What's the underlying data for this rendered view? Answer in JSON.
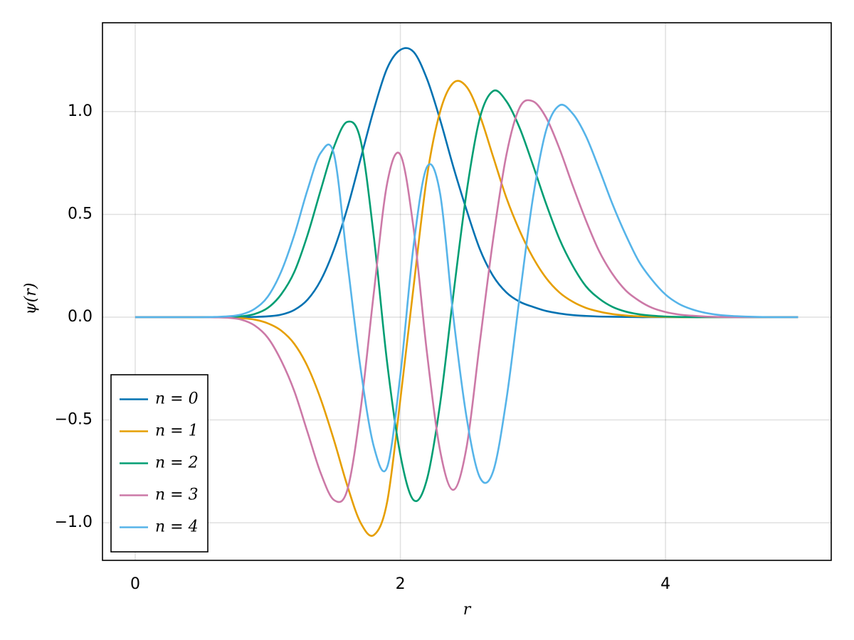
{
  "chart_data": {
    "type": "line",
    "xlabel": "r",
    "ylabel": "ψ(r)",
    "x": [
      0,
      0.1,
      0.2,
      0.3,
      0.4,
      0.5,
      0.6,
      0.7,
      0.8,
      0.9,
      1,
      1.1,
      1.2,
      1.3,
      1.4,
      1.5,
      1.6,
      1.7,
      1.8,
      1.9,
      2,
      2.1,
      2.2,
      2.3,
      2.4,
      2.5,
      2.6,
      2.7,
      2.8,
      2.9,
      3,
      3.1,
      3.2,
      3.3,
      3.4,
      3.5,
      3.6,
      3.7,
      3.8,
      3.9,
      4,
      4.1,
      4.2,
      4.3,
      4.4,
      4.5,
      4.6,
      4.7,
      4.8,
      4.9,
      5
    ],
    "series": [
      {
        "name": "n = 0",
        "color": "#0072b2",
        "values": [
          0,
          0,
          0,
          0,
          0,
          0,
          0,
          0,
          0,
          0.001,
          0.004,
          0.012,
          0.035,
          0.085,
          0.18,
          0.33,
          0.53,
          0.77,
          1.01,
          1.21,
          1.3,
          1.29,
          1.16,
          0.96,
          0.73,
          0.52,
          0.33,
          0.2,
          0.12,
          0.075,
          0.05,
          0.03,
          0.018,
          0.01,
          0.006,
          0.003,
          0.002,
          0.001,
          0,
          0,
          0,
          0,
          0,
          0,
          0,
          0,
          0,
          0,
          0,
          0,
          0
        ]
      },
      {
        "name": "n = 1",
        "color": "#e69f00",
        "values": [
          0,
          0,
          0,
          0,
          0,
          0,
          0,
          -0.002,
          -0.005,
          -0.012,
          -0.03,
          -0.065,
          -0.13,
          -0.24,
          -0.4,
          -0.6,
          -0.82,
          -1.0,
          -1.06,
          -0.9,
          -0.4,
          0.15,
          0.68,
          1.0,
          1.14,
          1.12,
          0.98,
          0.78,
          0.58,
          0.42,
          0.29,
          0.19,
          0.12,
          0.075,
          0.045,
          0.027,
          0.015,
          0.008,
          0.004,
          0.002,
          0.001,
          0,
          0,
          0,
          0,
          0,
          0,
          0,
          0,
          0,
          0
        ]
      },
      {
        "name": "n = 2",
        "color": "#009e73",
        "values": [
          0,
          0,
          0,
          0,
          0,
          0,
          0,
          0.001,
          0.004,
          0.015,
          0.045,
          0.11,
          0.22,
          0.4,
          0.62,
          0.83,
          0.95,
          0.86,
          0.39,
          -0.22,
          -0.67,
          -0.89,
          -0.79,
          -0.42,
          0.11,
          0.61,
          0.97,
          1.1,
          1.05,
          0.92,
          0.74,
          0.55,
          0.38,
          0.25,
          0.15,
          0.09,
          0.05,
          0.027,
          0.014,
          0.007,
          0.003,
          0.001,
          0,
          0,
          0,
          0,
          0,
          0,
          0,
          0,
          0
        ]
      },
      {
        "name": "n = 3",
        "color": "#cc79a7",
        "values": [
          0,
          0,
          0,
          0,
          0,
          0,
          -0.001,
          -0.003,
          -0.012,
          -0.04,
          -0.1,
          -0.21,
          -0.36,
          -0.56,
          -0.76,
          -0.89,
          -0.84,
          -0.45,
          0.12,
          0.65,
          0.79,
          0.43,
          -0.17,
          -0.65,
          -0.84,
          -0.63,
          -0.12,
          0.38,
          0.79,
          1.02,
          1.05,
          0.97,
          0.82,
          0.64,
          0.47,
          0.32,
          0.21,
          0.13,
          0.08,
          0.045,
          0.025,
          0.013,
          0.007,
          0.003,
          0.001,
          0,
          0,
          0,
          0,
          0,
          0
        ]
      },
      {
        "name": "n = 4",
        "color": "#56b4e9",
        "values": [
          0,
          0,
          0,
          0,
          0,
          0,
          0.001,
          0.004,
          0.013,
          0.04,
          0.1,
          0.22,
          0.4,
          0.62,
          0.8,
          0.79,
          0.27,
          -0.25,
          -0.63,
          -0.73,
          -0.28,
          0.35,
          0.73,
          0.6,
          0,
          -0.49,
          -0.78,
          -0.75,
          -0.4,
          0.1,
          0.58,
          0.91,
          1.03,
          0.99,
          0.88,
          0.72,
          0.55,
          0.4,
          0.27,
          0.18,
          0.11,
          0.065,
          0.038,
          0.021,
          0.011,
          0.006,
          0.003,
          0.001,
          0,
          0,
          0
        ]
      }
    ],
    "xlim": [
      -0.247,
      5.25
    ],
    "xticks": [
      0,
      2,
      4
    ],
    "ylim": [
      -1.183,
      1.432
    ],
    "yticks": [
      {
        "value": -1,
        "label": "−1.0"
      },
      {
        "value": -0.5,
        "label": "−0.5"
      },
      {
        "value": 0,
        "label": "0.0"
      },
      {
        "value": 0.5,
        "label": "0.5"
      },
      {
        "value": 1,
        "label": "1.0"
      }
    ],
    "grid": true,
    "legend": "lower left"
  }
}
